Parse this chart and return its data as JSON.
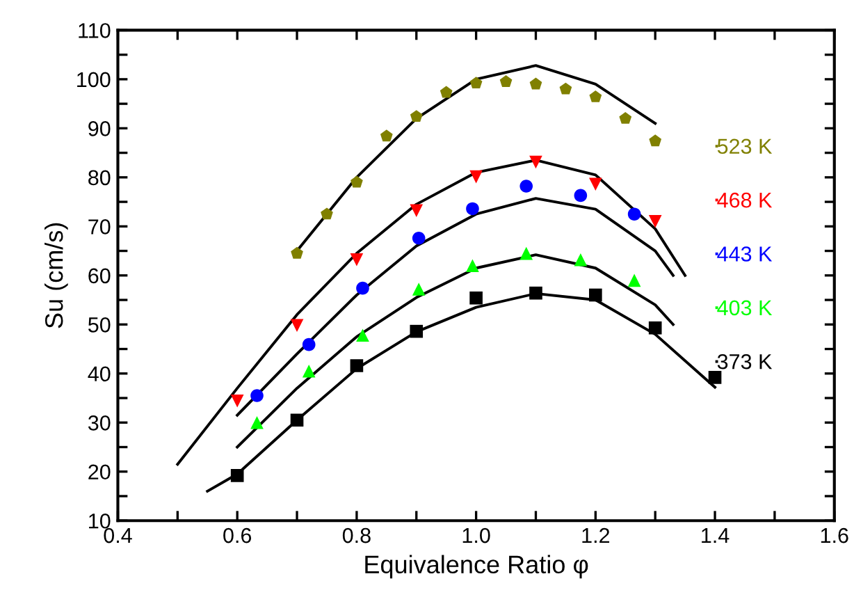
{
  "chart_data": {
    "type": "scatter",
    "xlabel": "Equivalence Ratio φ",
    "ylabel": "Su (cm/s)",
    "xlim": [
      0.4,
      1.6
    ],
    "ylim": [
      10,
      110
    ],
    "xticks": [
      0.4,
      {
        "value": 0.5,
        "label": null
      },
      0.6,
      {
        "value": 0.7,
        "label": null
      },
      0.8,
      {
        "value": 0.9,
        "label": null
      },
      {
        "value": 1.0,
        "label": "1.0"
      },
      {
        "value": 1.1,
        "label": null
      },
      1.2,
      {
        "value": 1.3,
        "label": null
      },
      1.4,
      {
        "value": 1.5,
        "label": null
      },
      1.6
    ],
    "yticks": [
      10,
      {
        "value": 15,
        "label": null
      },
      20,
      {
        "value": 25,
        "label": null
      },
      30,
      {
        "value": 35,
        "label": null
      },
      40,
      {
        "value": 45,
        "label": null
      },
      50,
      {
        "value": 55,
        "label": null
      },
      60,
      {
        "value": 65,
        "label": null
      },
      70,
      {
        "value": 75,
        "label": null
      },
      80,
      {
        "value": 85,
        "label": null
      },
      90,
      {
        "value": 95,
        "label": null
      },
      100,
      {
        "value": 105,
        "label": null
      },
      110
    ],
    "grid": false,
    "legend": "right",
    "series": [
      {
        "name": "523 K",
        "color": "#808000",
        "x": [
          0.7,
          0.75,
          0.8,
          0.85,
          0.9,
          0.95,
          1.0,
          1.05,
          1.1,
          1.15,
          1.2,
          1.25,
          1.3
        ],
        "values": [
          64.5,
          72.5,
          79,
          88.4,
          92.4,
          97.3,
          99.2,
          99.5,
          99,
          98,
          96.4,
          92,
          87.4
        ]
      },
      {
        "name": "468 K",
        "color": "#ff0000",
        "marker": "triangle_down",
        "x": [
          0.6,
          0.7,
          0.8,
          0.9,
          1.0,
          1.1,
          1.2,
          1.3
        ],
        "values": [
          34.4,
          49.8,
          63.2,
          73.2,
          80.1,
          83.1,
          78.6,
          71
        ]
      },
      {
        "name": "443 K",
        "color": "#0000ff",
        "marker": "circle",
        "x": [
          0.633,
          0.72,
          0.81,
          0.904,
          0.994,
          1.084,
          1.175,
          1.265
        ],
        "values": [
          35.5,
          45.9,
          57.4,
          67.6,
          73.6,
          78.2,
          76.3,
          72.5
        ]
      },
      {
        "name": "403 K",
        "color": "#00ff00",
        "marker": "triangle",
        "x": [
          0.633,
          0.72,
          0.81,
          0.904,
          0.994,
          1.084,
          1.175,
          1.265
        ],
        "values": [
          30,
          40.5,
          47.8,
          57.2,
          62,
          64.5,
          63.2,
          59
        ]
      },
      {
        "name": "373 K",
        "color": "#000000",
        "marker": "square",
        "x": [
          0.6,
          0.7,
          0.8,
          0.9,
          1.0,
          1.1,
          1.2,
          1.3,
          1.4
        ],
        "values": [
          19.2,
          30.5,
          41.6,
          48.6,
          55.4,
          56.4,
          56,
          49.3,
          39.2
        ]
      },
      {
        "type": "line",
        "color": "#000000",
        "marker": "none",
        "line_style": "solid",
        "x": [
          0.7,
          0.8,
          0.9,
          1.0,
          1.1,
          1.2,
          1.3
        ],
        "values": [
          65,
          80,
          92,
          100,
          102.8,
          99,
          91
        ]
      },
      {
        "type": "line",
        "color": "#000000",
        "marker": "none",
        "line_style": "solid",
        "x": [
          0.5,
          0.6,
          0.7,
          0.8,
          0.9,
          1.0,
          1.1,
          1.2,
          1.3,
          1.35
        ],
        "values": [
          21.5,
          37,
          52,
          64.5,
          74.5,
          81,
          83.5,
          80.5,
          69.5,
          60
        ]
      },
      {
        "type": "line",
        "color": "#000000",
        "marker": "none",
        "line_style": "solid",
        "x": [
          0.6,
          0.7,
          0.8,
          0.9,
          1.0,
          1.1,
          1.2,
          1.3,
          1.33
        ],
        "values": [
          31.5,
          44,
          56,
          66,
          72.5,
          75.7,
          73.5,
          65,
          60
        ]
      },
      {
        "type": "line",
        "color": "#000000",
        "marker": "none",
        "line_style": "solid",
        "x": [
          0.6,
          0.7,
          0.8,
          0.9,
          1.0,
          1.1,
          1.2,
          1.3,
          1.33
        ],
        "values": [
          25,
          37,
          47.5,
          55.5,
          61.5,
          64.2,
          61.5,
          54,
          50
        ]
      },
      {
        "type": "line",
        "color": "#000000",
        "marker": "none",
        "line_style": "solid",
        "x": [
          0.55,
          0.6,
          0.7,
          0.8,
          0.9,
          1.0,
          1.1,
          1.2,
          1.3,
          1.4
        ],
        "values": [
          16,
          19.5,
          30.5,
          41,
          48.5,
          53.5,
          56.3,
          55,
          48,
          37.2
        ]
      }
    ]
  }
}
